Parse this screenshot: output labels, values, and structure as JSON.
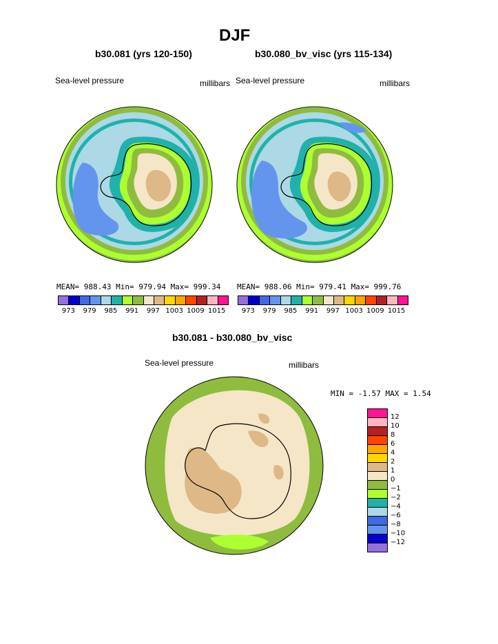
{
  "title": "DJF",
  "left_panel": {
    "subtitle": "b30.081 (yrs 120-150)",
    "field": "Sea-level pressure",
    "units": "millibars",
    "stats": "MEAN= 988.43  Min= 979.94  Max= 999.34"
  },
  "right_panel": {
    "subtitle": "b30.080_bv_visc (yrs 115-134)",
    "field": "Sea-level pressure",
    "units": "millibars",
    "stats": "MEAN= 988.06  Min= 979.41  Max= 999.76"
  },
  "diff_panel": {
    "subtitle": "b30.081 - b30.080_bv_visc",
    "field": "Sea-level pressure",
    "units": "millibars",
    "stats": "MIN =  -1.57 MAX =   1.54"
  },
  "colorbar_top": {
    "colors": [
      "#9370db",
      "#0000cd",
      "#4169e1",
      "#6495ed",
      "#add8e6",
      "#20b2aa",
      "#adff2f",
      "#8fbc3f",
      "#f5e6c8",
      "#deb887",
      "#ffd700",
      "#ffa500",
      "#ff4500",
      "#b22222",
      "#ffb6c1",
      "#ff1493"
    ],
    "labels": [
      "973",
      "979",
      "985",
      "991",
      "997",
      "1003",
      "1009",
      "1015"
    ]
  },
  "colorbar_diff": {
    "colors": [
      "#ff1493",
      "#ffb6c1",
      "#b22222",
      "#ff4500",
      "#ffa500",
      "#ffd700",
      "#deb887",
      "#f5e6c8",
      "#8fbc3f",
      "#adff2f",
      "#20b2aa",
      "#add8e6",
      "#4169e1",
      "#6495ed",
      "#0000cd",
      "#9370db"
    ],
    "labels": [
      "12",
      "10",
      "8",
      "6",
      "4",
      "2",
      "1",
      "0",
      "−1",
      "−2",
      "−4",
      "−6",
      "−8",
      "−10",
      "−12"
    ]
  }
}
